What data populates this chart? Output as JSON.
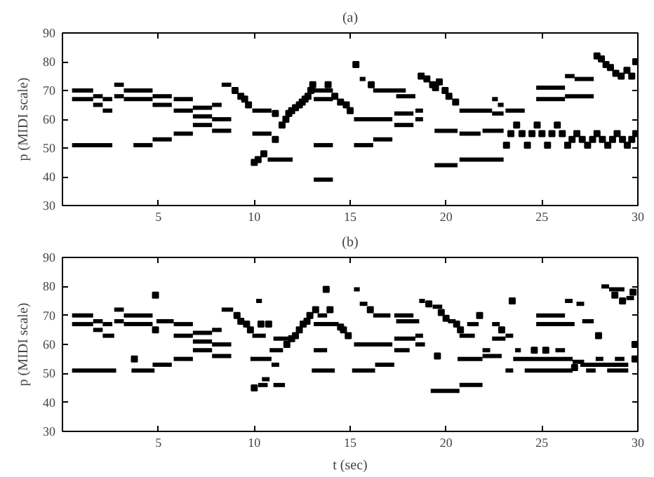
{
  "chart_data": [
    {
      "type": "line",
      "title": "(a)",
      "ylabel": "p (MIDI scale)",
      "xlim": [
        0,
        30
      ],
      "ylim": [
        30,
        90
      ],
      "xticks": [
        5,
        10,
        15,
        20,
        25,
        30
      ],
      "yticks": [
        30,
        40,
        50,
        60,
        70,
        80,
        90
      ],
      "grid": false,
      "line_style": "solid",
      "series": [
        {
          "color": "#000000",
          "x": [
            0.5,
            1.6
          ],
          "values": [
            70,
            70
          ]
        },
        {
          "color": "#000000",
          "x": [
            0.5,
            1.6
          ],
          "values": [
            67,
            67
          ]
        },
        {
          "color": "#000000",
          "x": [
            0.5,
            2.6
          ],
          "values": [
            51,
            51
          ]
        },
        {
          "color": "#000000",
          "x": [
            1.6,
            2.1
          ],
          "values": [
            68,
            68
          ]
        },
        {
          "color": "#000000",
          "x": [
            1.6,
            2.1
          ],
          "values": [
            65,
            65
          ]
        },
        {
          "color": "#000000",
          "x": [
            2.1,
            2.6
          ],
          "values": [
            67,
            67
          ]
        },
        {
          "color": "#000000",
          "x": [
            2.1,
            2.6
          ],
          "values": [
            63,
            63
          ]
        },
        {
          "color": "#000000",
          "x": [
            2.7,
            3.2
          ],
          "values": [
            72,
            72
          ]
        },
        {
          "color": "#000000",
          "x": [
            2.7,
            3.2
          ],
          "values": [
            68,
            68
          ]
        },
        {
          "color": "#000000",
          "x": [
            3.2,
            4.7
          ],
          "values": [
            70,
            70
          ]
        },
        {
          "color": "#000000",
          "x": [
            3.2,
            4.7
          ],
          "values": [
            67,
            67
          ]
        },
        {
          "color": "#000000",
          "x": [
            3.7,
            4.7
          ],
          "values": [
            51,
            51
          ]
        },
        {
          "color": "#000000",
          "x": [
            4.7,
            5.7
          ],
          "values": [
            68,
            68
          ]
        },
        {
          "color": "#000000",
          "x": [
            4.7,
            5.7
          ],
          "values": [
            65,
            65
          ]
        },
        {
          "color": "#000000",
          "x": [
            4.7,
            5.7
          ],
          "values": [
            53,
            53
          ]
        },
        {
          "color": "#000000",
          "x": [
            5.8,
            6.8
          ],
          "values": [
            67,
            67
          ]
        },
        {
          "color": "#000000",
          "x": [
            5.8,
            6.8
          ],
          "values": [
            63,
            63
          ]
        },
        {
          "color": "#000000",
          "x": [
            5.8,
            6.8
          ],
          "values": [
            55,
            55
          ]
        },
        {
          "color": "#000000",
          "x": [
            6.8,
            7.8
          ],
          "values": [
            64,
            64
          ]
        },
        {
          "color": "#000000",
          "x": [
            6.8,
            7.8
          ],
          "values": [
            61,
            61
          ]
        },
        {
          "color": "#000000",
          "x": [
            6.8,
            7.8
          ],
          "values": [
            58,
            58
          ]
        },
        {
          "color": "#000000",
          "x": [
            7.8,
            8.3
          ],
          "values": [
            65,
            65
          ]
        },
        {
          "color": "#000000",
          "x": [
            7.8,
            8.8
          ],
          "values": [
            60,
            60
          ]
        },
        {
          "color": "#000000",
          "x": [
            7.8,
            8.8
          ],
          "values": [
            56,
            56
          ]
        },
        {
          "color": "#000000",
          "x": [
            8.3,
            8.8
          ],
          "values": [
            72,
            72
          ]
        },
        {
          "color": "#000000",
          "x": [
            9.9,
            10.9
          ],
          "values": [
            63,
            63
          ]
        },
        {
          "color": "#000000",
          "x": [
            9.9,
            10.9
          ],
          "values": [
            55,
            55
          ]
        },
        {
          "color": "#000000",
          "x": [
            10.7,
            12.0
          ],
          "values": [
            46,
            46
          ]
        },
        {
          "color": "#000000",
          "x": [
            13.1,
            14.1
          ],
          "values": [
            70,
            70
          ]
        },
        {
          "color": "#000000",
          "x": [
            13.1,
            14.1
          ],
          "values": [
            67,
            67
          ]
        },
        {
          "color": "#000000",
          "x": [
            13.1,
            14.1
          ],
          "values": [
            51,
            51
          ]
        },
        {
          "color": "#000000",
          "x": [
            13.1,
            14.1
          ],
          "values": [
            39,
            39
          ]
        },
        {
          "color": "#000000",
          "x": [
            15.5,
            15.8
          ],
          "values": [
            74,
            74
          ]
        },
        {
          "color": "#000000",
          "x": [
            16.2,
            17.9
          ],
          "values": [
            70,
            70
          ]
        },
        {
          "color": "#000000",
          "x": [
            15.2,
            17.2
          ],
          "values": [
            60,
            60
          ]
        },
        {
          "color": "#000000",
          "x": [
            15.2,
            16.2
          ],
          "values": [
            51,
            51
          ]
        },
        {
          "color": "#000000",
          "x": [
            16.2,
            17.2
          ],
          "values": [
            53,
            53
          ]
        },
        {
          "color": "#000000",
          "x": [
            17.4,
            18.4
          ],
          "values": [
            68,
            68
          ]
        },
        {
          "color": "#000000",
          "x": [
            17.3,
            18.3
          ],
          "values": [
            62,
            62
          ]
        },
        {
          "color": "#000000",
          "x": [
            17.3,
            18.3
          ],
          "values": [
            58,
            58
          ]
        },
        {
          "color": "#000000",
          "x": [
            18.4,
            18.8
          ],
          "values": [
            63,
            63
          ]
        },
        {
          "color": "#000000",
          "x": [
            18.4,
            18.8
          ],
          "values": [
            60,
            60
          ]
        },
        {
          "color": "#000000",
          "x": [
            19.4,
            20.6
          ],
          "values": [
            56,
            56
          ]
        },
        {
          "color": "#000000",
          "x": [
            19.4,
            20.6
          ],
          "values": [
            44,
            44
          ]
        },
        {
          "color": "#000000",
          "x": [
            20.7,
            22.4
          ],
          "values": [
            63,
            63
          ]
        },
        {
          "color": "#000000",
          "x": [
            20.7,
            21.8
          ],
          "values": [
            55,
            55
          ]
        },
        {
          "color": "#000000",
          "x": [
            20.7,
            23.0
          ],
          "values": [
            46,
            46
          ]
        },
        {
          "color": "#000000",
          "x": [
            21.9,
            23.0
          ],
          "values": [
            56,
            56
          ]
        },
        {
          "color": "#000000",
          "x": [
            22.4,
            22.7
          ],
          "values": [
            67,
            67
          ]
        },
        {
          "color": "#000000",
          "x": [
            22.7,
            23.0
          ],
          "values": [
            65,
            65
          ]
        },
        {
          "color": "#000000",
          "x": [
            22.4,
            23.0
          ],
          "values": [
            62,
            62
          ]
        },
        {
          "color": "#000000",
          "x": [
            23.1,
            24.1
          ],
          "values": [
            63,
            63
          ]
        },
        {
          "color": "#000000",
          "x": [
            24.7,
            26.2
          ],
          "values": [
            71,
            71
          ]
        },
        {
          "color": "#000000",
          "x": [
            24.7,
            26.2
          ],
          "values": [
            67,
            67
          ]
        },
        {
          "color": "#000000",
          "x": [
            26.2,
            26.7
          ],
          "values": [
            75,
            75
          ]
        },
        {
          "color": "#000000",
          "x": [
            26.7,
            27.7
          ],
          "values": [
            74,
            74
          ]
        },
        {
          "color": "#000000",
          "x": [
            26.2,
            27.7
          ],
          "values": [
            68,
            68
          ]
        },
        {
          "type": "scatter",
          "marker": "square",
          "color": "#000000",
          "x": [
            9.0,
            9.3,
            9.5,
            9.7,
            10.0,
            10.2,
            10.5,
            11.1,
            11.1,
            11.45,
            11.65,
            11.8,
            11.95,
            12.15,
            12.35,
            12.5,
            12.65,
            12.8,
            12.95,
            13.05,
            13.85,
            14.2,
            14.5,
            14.8,
            15.0,
            15.3,
            16.1,
            18.7,
            19.0,
            19.3,
            19.45,
            19.65,
            19.95,
            20.15,
            20.5,
            23.15,
            23.38,
            23.68,
            23.96,
            24.24,
            24.48,
            24.75,
            25.0,
            25.29,
            25.52,
            25.8,
            26.06,
            26.34,
            26.57,
            26.82,
            27.1,
            27.38,
            27.64,
            27.87,
            28.15,
            28.43,
            28.68,
            28.92,
            29.2,
            29.45,
            29.68,
            29.89,
            27.87,
            28.1,
            28.34,
            28.57,
            28.85,
            29.13,
            29.43,
            29.68,
            29.89
          ],
          "values": [
            70,
            68,
            67,
            65,
            45,
            46,
            48,
            62,
            53,
            58,
            60,
            62,
            63,
            64,
            65,
            66,
            67,
            68,
            70,
            72,
            72,
            68,
            66,
            65,
            63,
            79,
            72,
            75,
            74,
            72,
            71,
            73,
            70,
            68,
            66,
            51,
            55,
            58,
            55,
            51,
            55,
            58,
            55,
            51,
            55,
            58,
            55,
            51,
            53,
            55,
            53,
            51,
            53,
            55,
            53,
            51,
            53,
            55,
            53,
            51,
            53,
            55,
            82,
            81,
            79,
            78,
            76,
            75,
            77,
            75,
            80
          ]
        }
      ]
    },
    {
      "type": "line",
      "title": "(b)",
      "xlabel": "t (sec)",
      "ylabel": "p (MIDI scale)",
      "xlim": [
        0,
        30
      ],
      "ylim": [
        30,
        90
      ],
      "xticks": [
        5,
        10,
        15,
        20,
        25,
        30
      ],
      "yticks": [
        30,
        40,
        50,
        60,
        70,
        80,
        90
      ],
      "grid": false,
      "line_style": "solid",
      "series": [
        {
          "color": "#000000",
          "x": [
            0.5,
            1.6
          ],
          "values": [
            70,
            70
          ]
        },
        {
          "color": "#000000",
          "x": [
            0.5,
            1.6
          ],
          "values": [
            67,
            67
          ]
        },
        {
          "color": "#000000",
          "x": [
            0.5,
            2.8
          ],
          "values": [
            51,
            51
          ]
        },
        {
          "color": "#000000",
          "x": [
            1.6,
            2.1
          ],
          "values": [
            68,
            68
          ]
        },
        {
          "color": "#000000",
          "x": [
            1.6,
            2.1
          ],
          "values": [
            65,
            65
          ]
        },
        {
          "color": "#000000",
          "x": [
            2.1,
            2.6
          ],
          "values": [
            67,
            67
          ]
        },
        {
          "color": "#000000",
          "x": [
            2.1,
            2.7
          ],
          "values": [
            63,
            63
          ]
        },
        {
          "color": "#000000",
          "x": [
            2.7,
            3.2
          ],
          "values": [
            72,
            72
          ]
        },
        {
          "color": "#000000",
          "x": [
            2.7,
            3.2
          ],
          "values": [
            68,
            68
          ]
        },
        {
          "color": "#000000",
          "x": [
            3.2,
            4.7
          ],
          "values": [
            70,
            70
          ]
        },
        {
          "color": "#000000",
          "x": [
            3.2,
            4.7
          ],
          "values": [
            67,
            67
          ]
        },
        {
          "color": "#000000",
          "x": [
            3.6,
            4.8
          ],
          "values": [
            51,
            51
          ]
        },
        {
          "color": "#000000",
          "x": [
            4.9,
            5.8
          ],
          "values": [
            68,
            68
          ]
        },
        {
          "color": "#000000",
          "x": [
            4.7,
            5.7
          ],
          "values": [
            53,
            53
          ]
        },
        {
          "color": "#000000",
          "x": [
            5.8,
            6.8
          ],
          "values": [
            67,
            67
          ]
        },
        {
          "color": "#000000",
          "x": [
            5.8,
            6.8
          ],
          "values": [
            63,
            63
          ]
        },
        {
          "color": "#000000",
          "x": [
            5.8,
            6.8
          ],
          "values": [
            55,
            55
          ]
        },
        {
          "color": "#000000",
          "x": [
            6.8,
            7.8
          ],
          "values": [
            64,
            64
          ]
        },
        {
          "color": "#000000",
          "x": [
            6.8,
            7.8
          ],
          "values": [
            61,
            61
          ]
        },
        {
          "color": "#000000",
          "x": [
            6.8,
            7.8
          ],
          "values": [
            58,
            58
          ]
        },
        {
          "color": "#000000",
          "x": [
            7.8,
            8.3
          ],
          "values": [
            65,
            65
          ]
        },
        {
          "color": "#000000",
          "x": [
            7.8,
            8.8
          ],
          "values": [
            60,
            60
          ]
        },
        {
          "color": "#000000",
          "x": [
            7.8,
            8.8
          ],
          "values": [
            56,
            56
          ]
        },
        {
          "color": "#000000",
          "x": [
            8.3,
            8.9
          ],
          "values": [
            72,
            72
          ]
        },
        {
          "color": "#000000",
          "x": [
            9.9,
            10.6
          ],
          "values": [
            63,
            63
          ]
        },
        {
          "color": "#000000",
          "x": [
            10.1,
            10.4
          ],
          "values": [
            75,
            75
          ]
        },
        {
          "color": "#000000",
          "x": [
            9.8,
            10.9
          ],
          "values": [
            55,
            55
          ]
        },
        {
          "color": "#000000",
          "x": [
            10.2,
            10.7
          ],
          "values": [
            46,
            46
          ]
        },
        {
          "color": "#000000",
          "x": [
            10.4,
            10.8
          ],
          "values": [
            48,
            48
          ]
        },
        {
          "color": "#000000",
          "x": [
            11.0,
            11.8
          ],
          "values": [
            62,
            62
          ]
        },
        {
          "color": "#000000",
          "x": [
            10.8,
            11.5
          ],
          "values": [
            58,
            58
          ]
        },
        {
          "color": "#000000",
          "x": [
            10.9,
            11.3
          ],
          "values": [
            53,
            53
          ]
        },
        {
          "color": "#000000",
          "x": [
            11.0,
            11.6
          ],
          "values": [
            46,
            46
          ]
        },
        {
          "color": "#000000",
          "x": [
            13.1,
            13.8
          ],
          "values": [
            58,
            58
          ]
        },
        {
          "color": "#000000",
          "x": [
            13.0,
            14.2
          ],
          "values": [
            51,
            51
          ]
        },
        {
          "color": "#000000",
          "x": [
            13.3,
            13.8
          ],
          "values": [
            70,
            70
          ]
        },
        {
          "color": "#000000",
          "x": [
            13.1,
            14.4
          ],
          "values": [
            67,
            67
          ]
        },
        {
          "color": "#000000",
          "x": [
            15.2,
            15.5
          ],
          "values": [
            79,
            79
          ]
        },
        {
          "color": "#000000",
          "x": [
            15.5,
            15.9
          ],
          "values": [
            74,
            74
          ]
        },
        {
          "color": "#000000",
          "x": [
            16.2,
            17.1
          ],
          "values": [
            70,
            70
          ]
        },
        {
          "color": "#000000",
          "x": [
            15.2,
            17.2
          ],
          "values": [
            60,
            60
          ]
        },
        {
          "color": "#000000",
          "x": [
            15.1,
            16.3
          ],
          "values": [
            51,
            51
          ]
        },
        {
          "color": "#000000",
          "x": [
            16.3,
            17.3
          ],
          "values": [
            53,
            53
          ]
        },
        {
          "color": "#000000",
          "x": [
            17.3,
            18.3
          ],
          "values": [
            70,
            70
          ]
        },
        {
          "color": "#000000",
          "x": [
            17.4,
            18.6
          ],
          "values": [
            68,
            68
          ]
        },
        {
          "color": "#000000",
          "x": [
            17.3,
            18.4
          ],
          "values": [
            62,
            62
          ]
        },
        {
          "color": "#000000",
          "x": [
            17.3,
            18.1
          ],
          "values": [
            58,
            58
          ]
        },
        {
          "color": "#000000",
          "x": [
            18.4,
            18.8
          ],
          "values": [
            63,
            63
          ]
        },
        {
          "color": "#000000",
          "x": [
            18.4,
            18.9
          ],
          "values": [
            60,
            60
          ]
        },
        {
          "color": "#000000",
          "x": [
            18.6,
            18.9
          ],
          "values": [
            75,
            75
          ]
        },
        {
          "color": "#000000",
          "x": [
            19.3,
            19.8
          ],
          "values": [
            73,
            73
          ]
        },
        {
          "color": "#000000",
          "x": [
            20.1,
            20.5
          ],
          "values": [
            68,
            68
          ]
        },
        {
          "color": "#000000",
          "x": [
            19.2,
            20.7
          ],
          "values": [
            44,
            44
          ]
        },
        {
          "color": "#000000",
          "x": [
            20.7,
            21.9
          ],
          "values": [
            46,
            46
          ]
        },
        {
          "color": "#000000",
          "x": [
            20.7,
            21.5
          ],
          "values": [
            63,
            63
          ]
        },
        {
          "color": "#000000",
          "x": [
            20.6,
            21.9
          ],
          "values": [
            55,
            55
          ]
        },
        {
          "color": "#000000",
          "x": [
            21.1,
            21.7
          ],
          "values": [
            67,
            67
          ]
        },
        {
          "color": "#000000",
          "x": [
            21.9,
            22.3
          ],
          "values": [
            58,
            58
          ]
        },
        {
          "color": "#000000",
          "x": [
            21.9,
            22.9
          ],
          "values": [
            56,
            56
          ]
        },
        {
          "color": "#000000",
          "x": [
            22.4,
            22.8
          ],
          "values": [
            67,
            67
          ]
        },
        {
          "color": "#000000",
          "x": [
            22.4,
            23.1
          ],
          "values": [
            62,
            62
          ]
        },
        {
          "color": "#000000",
          "x": [
            23.1,
            23.5
          ],
          "values": [
            63,
            63
          ]
        },
        {
          "color": "#000000",
          "x": [
            23.1,
            23.5
          ],
          "values": [
            51,
            51
          ]
        },
        {
          "color": "#000000",
          "x": [
            23.5,
            26.6
          ],
          "values": [
            55,
            55
          ]
        },
        {
          "color": "#000000",
          "x": [
            24.1,
            26.6
          ],
          "values": [
            51,
            51
          ]
        },
        {
          "color": "#000000",
          "x": [
            23.6,
            23.9
          ],
          "values": [
            58,
            58
          ]
        },
        {
          "color": "#000000",
          "x": [
            25.7,
            26.2
          ],
          "values": [
            58,
            58
          ]
        },
        {
          "color": "#000000",
          "x": [
            24.7,
            26.2
          ],
          "values": [
            70,
            70
          ]
        },
        {
          "color": "#000000",
          "x": [
            24.7,
            26.7
          ],
          "values": [
            67,
            67
          ]
        },
        {
          "color": "#000000",
          "x": [
            26.2,
            26.6
          ],
          "values": [
            75,
            75
          ]
        },
        {
          "color": "#000000",
          "x": [
            26.8,
            27.2
          ],
          "values": [
            74,
            74
          ]
        },
        {
          "color": "#000000",
          "x": [
            27.1,
            27.7
          ],
          "values": [
            68,
            68
          ]
        },
        {
          "color": "#000000",
          "x": [
            26.6,
            27.2
          ],
          "values": [
            54,
            54
          ]
        },
        {
          "color": "#000000",
          "x": [
            27.8,
            28.2
          ],
          "values": [
            55,
            55
          ]
        },
        {
          "color": "#000000",
          "x": [
            28.8,
            29.3
          ],
          "values": [
            55,
            55
          ]
        },
        {
          "color": "#000000",
          "x": [
            27.0,
            29.5
          ],
          "values": [
            53,
            53
          ]
        },
        {
          "color": "#000000",
          "x": [
            27.3,
            27.8
          ],
          "values": [
            51,
            51
          ]
        },
        {
          "color": "#000000",
          "x": [
            28.4,
            29.5
          ],
          "values": [
            51,
            51
          ]
        },
        {
          "color": "#000000",
          "x": [
            28.1,
            28.5
          ],
          "values": [
            80,
            80
          ]
        },
        {
          "color": "#000000",
          "x": [
            28.5,
            29.3
          ],
          "values": [
            79,
            79
          ]
        },
        {
          "color": "#000000",
          "x": [
            29.4,
            29.8
          ],
          "values": [
            76,
            76
          ]
        },
        {
          "type": "scatter",
          "marker": "square",
          "color": "#000000",
          "x": [
            3.75,
            4.85,
            4.85,
            9.1,
            9.3,
            9.6,
            9.8,
            10.35,
            10.75,
            10.0,
            11.7,
            11.95,
            12.15,
            12.35,
            12.55,
            12.75,
            12.9,
            13.2,
            13.95,
            13.75,
            14.5,
            14.65,
            14.9,
            16.05,
            19.1,
            19.75,
            20.0,
            20.55,
            20.75,
            19.55,
            21.75,
            22.9,
            23.45,
            24.6,
            25.2,
            27.95,
            29.85,
            26.7,
            28.8,
            29.2,
            29.75,
            29.85
          ],
          "values": [
            55,
            77,
            65,
            70,
            68,
            67,
            65,
            67,
            67,
            45,
            60,
            62,
            63,
            65,
            67,
            68,
            70,
            72,
            72,
            79,
            66,
            65,
            63,
            72,
            74,
            71,
            69,
            67,
            65,
            56,
            70,
            65,
            75,
            58,
            58,
            63,
            55,
            52,
            77,
            75,
            78,
            60
          ]
        }
      ]
    }
  ]
}
